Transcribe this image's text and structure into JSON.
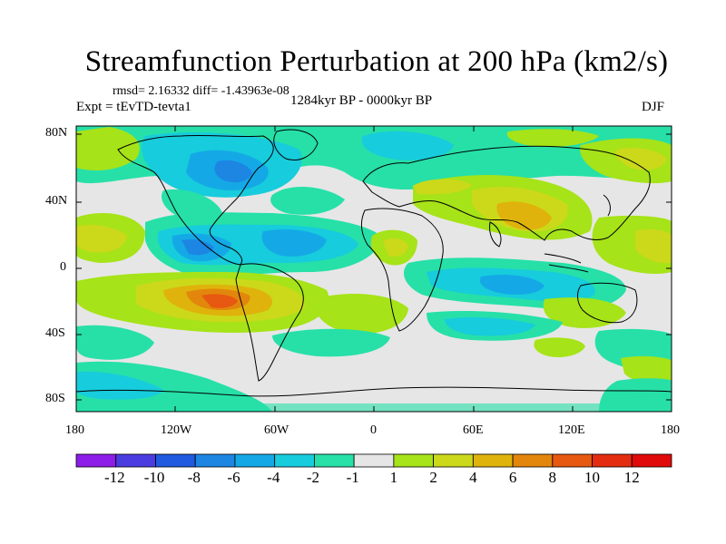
{
  "title": "Streamfunction Perturbation at 200 hPa (km2/s)",
  "stats": "rmsd= 2.16332 diff= -1.43963e-08",
  "experiment": "Expt = tEvTD-tevta1",
  "period": "1284kyr BP - 0000kyr BP",
  "season": "DJF",
  "y_labels": [
    "80N",
    "40N",
    "0",
    "40S",
    "80S"
  ],
  "x_labels": [
    "180",
    "120W",
    "60W",
    "0",
    "60E",
    "120E",
    "180"
  ],
  "colorbar": {
    "labels": [
      "-12",
      "-10",
      "-8",
      "-6",
      "-4",
      "-2",
      "-1",
      "1",
      "2",
      "4",
      "6",
      "8",
      "10",
      "12"
    ],
    "colors": [
      "#8c1ee8",
      "#4b3ce0",
      "#1f5ae0",
      "#1d86e3",
      "#14a9e6",
      "#17ccdc",
      "#26e0a8",
      "#e6e6e6",
      "#a6e318",
      "#cbd91a",
      "#dfb30b",
      "#e2860c",
      "#e75811",
      "#e32c10",
      "#e10a0a"
    ]
  }
}
